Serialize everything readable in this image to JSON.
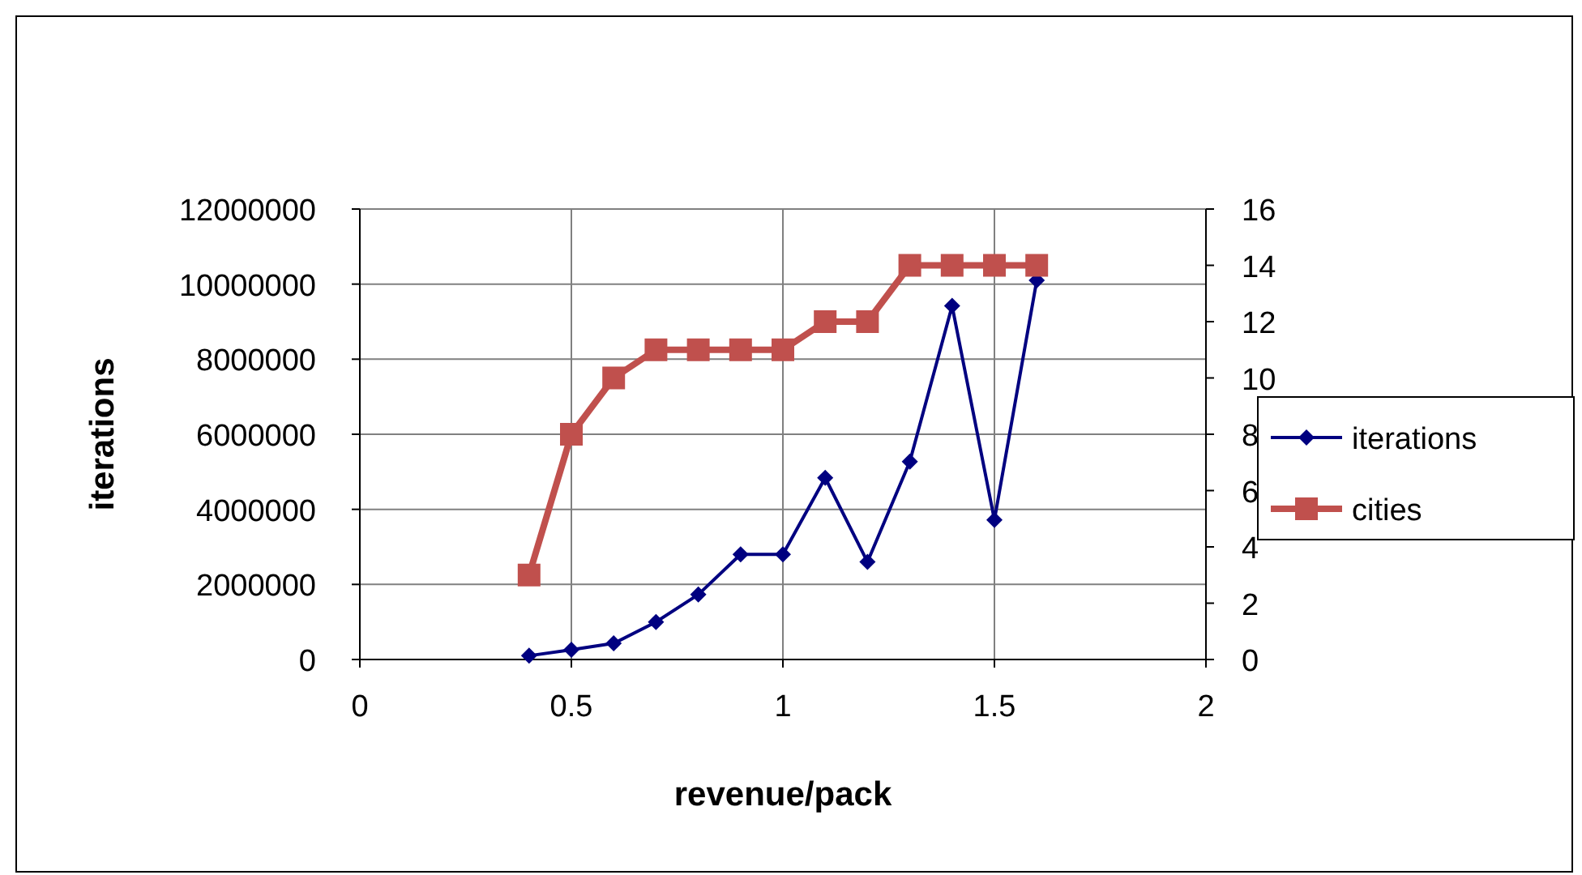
{
  "chart_data": {
    "type": "line",
    "xlabel": "revenue/pack",
    "ylabel": "iterations",
    "x": [
      0.4,
      0.5,
      0.6,
      0.7,
      0.8,
      0.9,
      1.0,
      1.1,
      1.2,
      1.3,
      1.4,
      1.5,
      1.6
    ],
    "series": [
      {
        "name": "iterations",
        "color": "#000080",
        "marker": "diamond",
        "values": [
          100000,
          260000,
          430000,
          1000000,
          1730000,
          2800000,
          2800000,
          4840000,
          2600000,
          5270000,
          9420000,
          3720000,
          10100000
        ]
      },
      {
        "name": "cities",
        "color": "#c0504d",
        "marker": "square",
        "axis": "y2",
        "values": [
          3,
          8,
          10,
          11,
          11,
          11,
          11,
          12,
          12,
          14,
          14,
          14,
          14
        ]
      }
    ],
    "xlim": [
      0,
      2
    ],
    "xticks": [
      0,
      0.5,
      1,
      1.5,
      2
    ],
    "ylim": [
      0,
      12000000
    ],
    "yticks": [
      0,
      2000000,
      4000000,
      6000000,
      8000000,
      10000000,
      12000000
    ],
    "y2lim": [
      0,
      16
    ],
    "y2ticks": [
      0,
      2,
      4,
      6,
      8,
      10,
      12,
      14,
      16
    ],
    "grid": true,
    "legend": "right"
  }
}
